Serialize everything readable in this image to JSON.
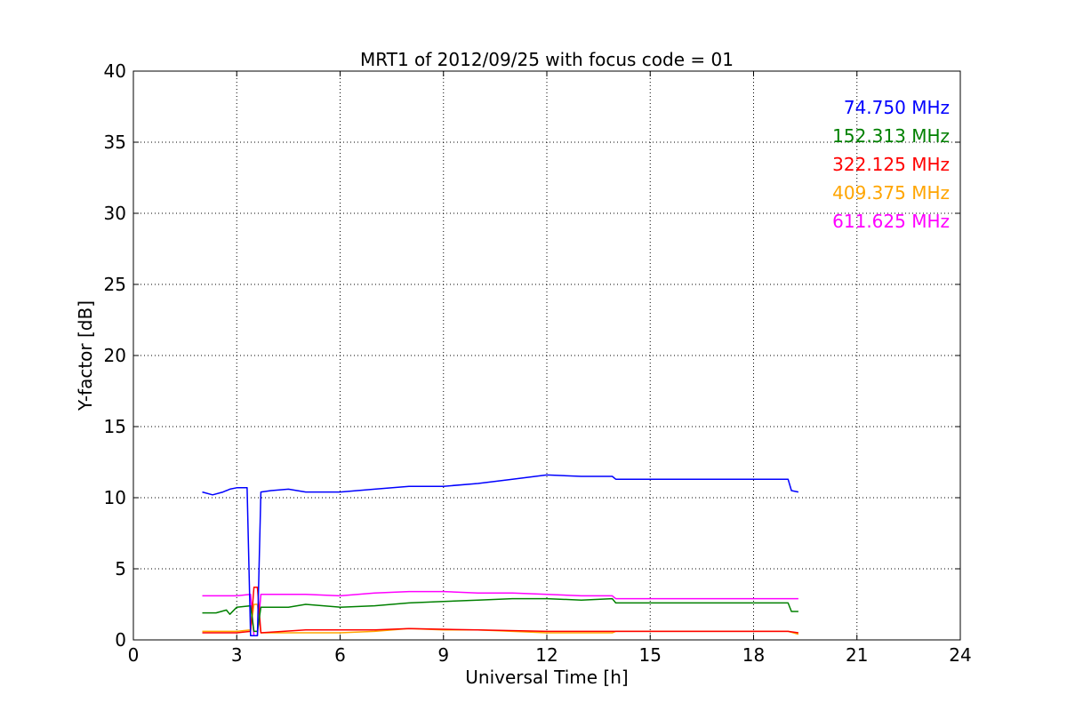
{
  "chart_data": {
    "type": "line",
    "title": "MRT1 of 2012/09/25 with focus code = 01",
    "xlabel": "Universal Time [h]",
    "ylabel": "Y-factor [dB]",
    "xlim": [
      0,
      24
    ],
    "ylim": [
      0,
      40
    ],
    "xticks": [
      0,
      3,
      6,
      9,
      12,
      15,
      18,
      21,
      24
    ],
    "yticks": [
      0,
      5,
      10,
      15,
      20,
      25,
      30,
      35,
      40
    ],
    "grid": true,
    "legend_placement": "top-right",
    "series": [
      {
        "name": "74.750 MHz",
        "color": "#0000ff",
        "points": [
          [
            2.0,
            10.4
          ],
          [
            2.3,
            10.2
          ],
          [
            2.6,
            10.4
          ],
          [
            2.8,
            10.6
          ],
          [
            3.0,
            10.7
          ],
          [
            3.3,
            10.7
          ],
          [
            3.4,
            0.3
          ],
          [
            3.6,
            0.3
          ],
          [
            3.7,
            10.4
          ],
          [
            4.0,
            10.5
          ],
          [
            4.5,
            10.6
          ],
          [
            5.0,
            10.4
          ],
          [
            6.0,
            10.4
          ],
          [
            7.0,
            10.6
          ],
          [
            8.0,
            10.8
          ],
          [
            9.0,
            10.8
          ],
          [
            10.0,
            11.0
          ],
          [
            11.0,
            11.3
          ],
          [
            12.0,
            11.6
          ],
          [
            13.0,
            11.5
          ],
          [
            13.9,
            11.5
          ],
          [
            14.0,
            11.3
          ],
          [
            19.0,
            11.3
          ],
          [
            19.1,
            10.5
          ],
          [
            19.3,
            10.4
          ]
        ]
      },
      {
        "name": "152.313 MHz",
        "color": "#008000",
        "points": [
          [
            2.0,
            1.9
          ],
          [
            2.4,
            1.9
          ],
          [
            2.7,
            2.1
          ],
          [
            2.8,
            1.8
          ],
          [
            3.0,
            2.3
          ],
          [
            3.4,
            2.4
          ],
          [
            3.5,
            0.6
          ],
          [
            3.6,
            0.6
          ],
          [
            3.7,
            2.3
          ],
          [
            4.5,
            2.3
          ],
          [
            5.0,
            2.5
          ],
          [
            6.0,
            2.3
          ],
          [
            7.0,
            2.4
          ],
          [
            8.0,
            2.6
          ],
          [
            9.0,
            2.7
          ],
          [
            10.0,
            2.8
          ],
          [
            11.0,
            2.9
          ],
          [
            12.0,
            2.9
          ],
          [
            13.0,
            2.8
          ],
          [
            13.9,
            2.9
          ],
          [
            14.0,
            2.6
          ],
          [
            19.0,
            2.6
          ],
          [
            19.1,
            2.0
          ],
          [
            19.3,
            2.0
          ]
        ]
      },
      {
        "name": "322.125 MHz",
        "color": "#ff0000",
        "points": [
          [
            2.0,
            0.5
          ],
          [
            3.0,
            0.5
          ],
          [
            3.4,
            0.6
          ],
          [
            3.5,
            3.7
          ],
          [
            3.6,
            3.7
          ],
          [
            3.7,
            0.5
          ],
          [
            5.0,
            0.7
          ],
          [
            7.0,
            0.7
          ],
          [
            8.0,
            0.8
          ],
          [
            10.0,
            0.7
          ],
          [
            12.0,
            0.6
          ],
          [
            13.9,
            0.6
          ],
          [
            14.0,
            0.6
          ],
          [
            19.0,
            0.6
          ],
          [
            19.3,
            0.5
          ]
        ]
      },
      {
        "name": "409.375 MHz",
        "color": "#ffa500",
        "points": [
          [
            2.0,
            0.6
          ],
          [
            3.0,
            0.6
          ],
          [
            3.4,
            0.7
          ],
          [
            3.5,
            2.5
          ],
          [
            3.6,
            2.5
          ],
          [
            3.7,
            0.5
          ],
          [
            5.0,
            0.5
          ],
          [
            6.0,
            0.5
          ],
          [
            7.0,
            0.6
          ],
          [
            8.0,
            0.8
          ],
          [
            9.0,
            0.7
          ],
          [
            10.0,
            0.7
          ],
          [
            11.0,
            0.6
          ],
          [
            12.0,
            0.5
          ],
          [
            13.9,
            0.5
          ],
          [
            14.0,
            0.6
          ],
          [
            19.0,
            0.6
          ],
          [
            19.3,
            0.4
          ]
        ]
      },
      {
        "name": "611.625 MHz",
        "color": "#ff00ff",
        "points": [
          [
            2.0,
            3.1
          ],
          [
            3.0,
            3.1
          ],
          [
            3.4,
            3.2
          ],
          [
            3.5,
            0.3
          ],
          [
            3.6,
            0.3
          ],
          [
            3.7,
            3.2
          ],
          [
            5.0,
            3.2
          ],
          [
            6.0,
            3.1
          ],
          [
            7.0,
            3.3
          ],
          [
            8.0,
            3.4
          ],
          [
            9.0,
            3.4
          ],
          [
            10.0,
            3.3
          ],
          [
            11.0,
            3.3
          ],
          [
            12.0,
            3.2
          ],
          [
            13.0,
            3.1
          ],
          [
            13.9,
            3.1
          ],
          [
            14.0,
            2.9
          ],
          [
            19.0,
            2.9
          ],
          [
            19.3,
            2.9
          ]
        ]
      }
    ]
  }
}
